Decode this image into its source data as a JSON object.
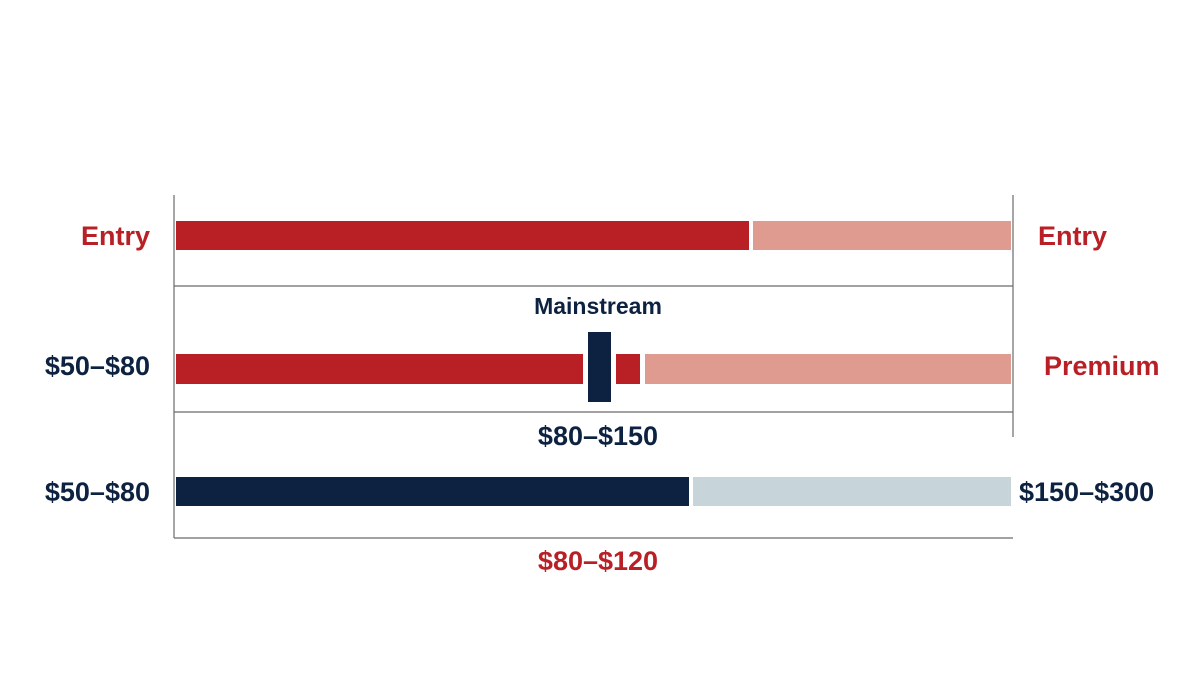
{
  "rows": [
    {
      "left": "Entry",
      "right": "Entry"
    },
    {
      "top": "Mainstream",
      "left": "$50–$80",
      "right": "Premium",
      "bottom": "$80–$150"
    },
    {
      "left": "$50–$80",
      "right": "$150–$300",
      "bottom": "$80–$120"
    }
  ]
}
